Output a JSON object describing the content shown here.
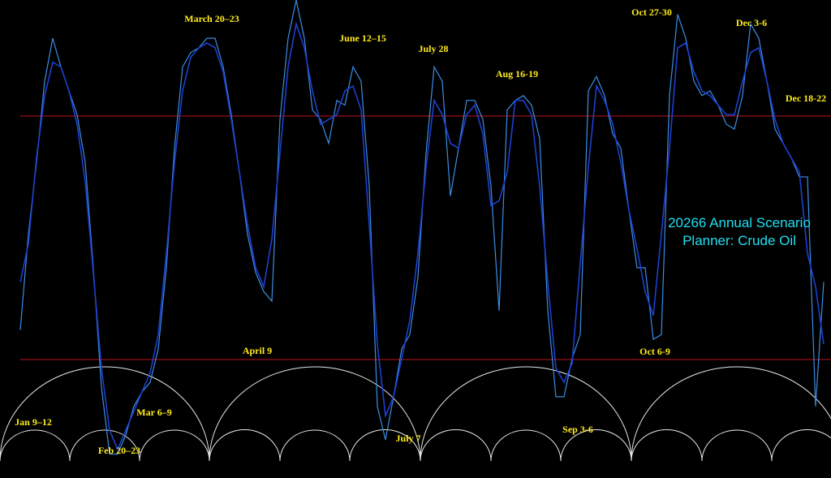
{
  "chart_data": {
    "type": "line",
    "title": "20266 Annual Scenario Planner: Crude Oil",
    "ylim": [
      0,
      100
    ],
    "series": [
      {
        "color": "#3a8ee6",
        "values": [
          31,
          51,
          66,
          83,
          92,
          86,
          81,
          76,
          66,
          44,
          19,
          5,
          5,
          9,
          15,
          18,
          20,
          27,
          44,
          69,
          86,
          89,
          90,
          92,
          92,
          86,
          76,
          64,
          51,
          43,
          39,
          37,
          75,
          92,
          100,
          92,
          77,
          75,
          70,
          79,
          78,
          86,
          83,
          61,
          15,
          8,
          17,
          27,
          30,
          42,
          68,
          86,
          83,
          59,
          69,
          79,
          79,
          75,
          61,
          35,
          77,
          79,
          80,
          78,
          71,
          35,
          17,
          17,
          25,
          30,
          81,
          84,
          80,
          72,
          69,
          56,
          44,
          44,
          29,
          30,
          80,
          97,
          92,
          83,
          80,
          81,
          78,
          74,
          73,
          80,
          95,
          92,
          83,
          73,
          70,
          67,
          63,
          63,
          15,
          41
        ]
      },
      {
        "color": "#1f3fd0",
        "values": [
          41,
          49,
          67,
          80,
          87,
          86,
          81,
          74,
          62,
          43,
          23,
          10,
          6,
          10,
          14,
          18,
          22,
          30,
          47,
          66,
          81,
          88,
          90,
          91,
          90,
          85,
          75,
          64,
          53,
          44,
          40,
          50,
          68,
          86,
          95,
          90,
          81,
          74,
          75,
          76,
          81,
          82,
          77,
          53,
          28,
          13,
          17,
          25,
          33,
          47,
          65,
          79,
          76,
          70,
          69,
          76,
          78,
          72,
          57,
          58,
          64,
          79,
          79,
          76,
          61,
          41,
          23,
          20,
          24,
          45,
          65,
          82,
          79,
          74,
          66,
          56,
          48,
          39,
          34,
          51,
          69,
          90,
          91,
          85,
          81,
          80,
          78,
          76,
          76,
          83,
          89,
          90,
          83,
          75,
          70,
          67,
          64,
          47,
          40,
          28
        ]
      }
    ],
    "annotations": [
      "March 20–23",
      "June 12–15",
      "July 28",
      "Aug 16-19",
      "Oct 27-30",
      "Dec 3-6",
      "Dec 18-22",
      "April 9",
      "Oct 6-9",
      "Jan 9–12",
      "Mar 6–9",
      "Feb 20–23",
      "July 7",
      "Sep 3-6"
    ]
  }
}
